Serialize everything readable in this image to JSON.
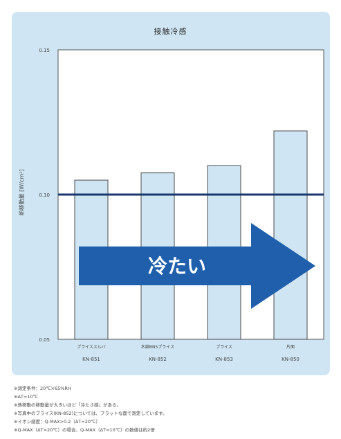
{
  "chart_data": {
    "type": "bar",
    "title": "接触冷感",
    "ylabel": "熱移動量 [W/cm²]",
    "ylim": [
      0.05,
      0.15
    ],
    "yticks": [
      "0.05",
      "0.10",
      "0.15"
    ],
    "ytick_values": [
      0.05,
      0.1,
      0.15
    ],
    "categories": [
      {
        "name": "プライススルバ",
        "model": "KN-851"
      },
      {
        "name": "木綿BN5プライス",
        "model": "KN-852"
      },
      {
        "name": "プライス",
        "model": "KN-853"
      },
      {
        "name": "片面",
        "model": "KN-850"
      }
    ],
    "values": [
      0.105,
      0.1075,
      0.11,
      0.122
    ],
    "reference_line": 0.1,
    "arrow_label": "冷たい",
    "grid": false
  },
  "notes": [
    "※測定条件：20℃×65%RH",
    "※ΔT=10℃",
    "※熱移動の移動量が大きいほど「冷たさ感」がある。",
    "※写真中のプライス(KN-852)については、フラットな面で測定しています。",
    "※イオン感度：Q-MAX>0.2（ΔT=20℃）",
    "※Q-MAX（ΔT=20℃）の場合、Q-MAX（ΔT=10℃）の数値は約2倍"
  ],
  "colors": {
    "panel": "#cfe5f3",
    "plot_bg": "#ffffff",
    "bar": "#cfe5f3",
    "bar_border": "#4a4a4a",
    "ref_line": "#17376e",
    "arrow": "#1f5fac",
    "arrow_text": "#ffffff"
  }
}
